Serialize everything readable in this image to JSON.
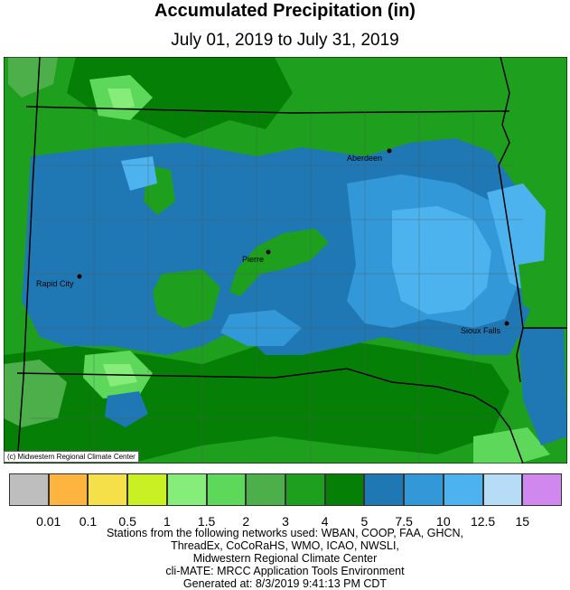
{
  "title": "Accumulated Precipitation (in)",
  "subtitle": "July 01, 2019 to July 31, 2019",
  "credit": "(c) Midwestern Regional Climate Center",
  "colors": {
    "c0": "#bebebe",
    "c1": "#fdb53f",
    "c2": "#f5e04a",
    "c3": "#c8f023",
    "c4": "#86ed7b",
    "c5": "#5ed85a",
    "c6": "#4daf4a",
    "c7": "#1ea01e",
    "c8": "#067f06",
    "c9": "#1f78b4",
    "c10": "#3398d8",
    "c11": "#4db3ee",
    "c12": "#b7dcf5",
    "c13": "#d087ee"
  },
  "legend": {
    "colors": [
      "#bebebe",
      "#fdb53f",
      "#f5e04a",
      "#c8f023",
      "#86ed7b",
      "#5ed85a",
      "#4daf4a",
      "#1ea01e",
      "#067f06",
      "#1f78b4",
      "#3398d8",
      "#4db3ee",
      "#b7dcf5",
      "#d087ee"
    ],
    "ticks": [
      "0.01",
      "0.1",
      "0.5",
      "1",
      "1.5",
      "2",
      "3",
      "4",
      "5",
      "7.5",
      "10",
      "12.5",
      "15"
    ]
  },
  "cities": [
    {
      "name": "Aberdeen"
    },
    {
      "name": "Pierre"
    },
    {
      "name": "Rapid City"
    },
    {
      "name": "Sioux Falls"
    }
  ],
  "footer": {
    "line1": "Stations from the following networks used: WBAN, COOP, FAA, GHCN,",
    "line2": "ThreadEx, CoCoRaHS, WMO, ICAO, NWSLI,",
    "line3": "Midwestern Regional Climate Center",
    "line4": "cli-MATE: MRCC Application Tools Environment",
    "line5": "Generated at: 8/3/2019 9:41:13 PM CDT"
  }
}
